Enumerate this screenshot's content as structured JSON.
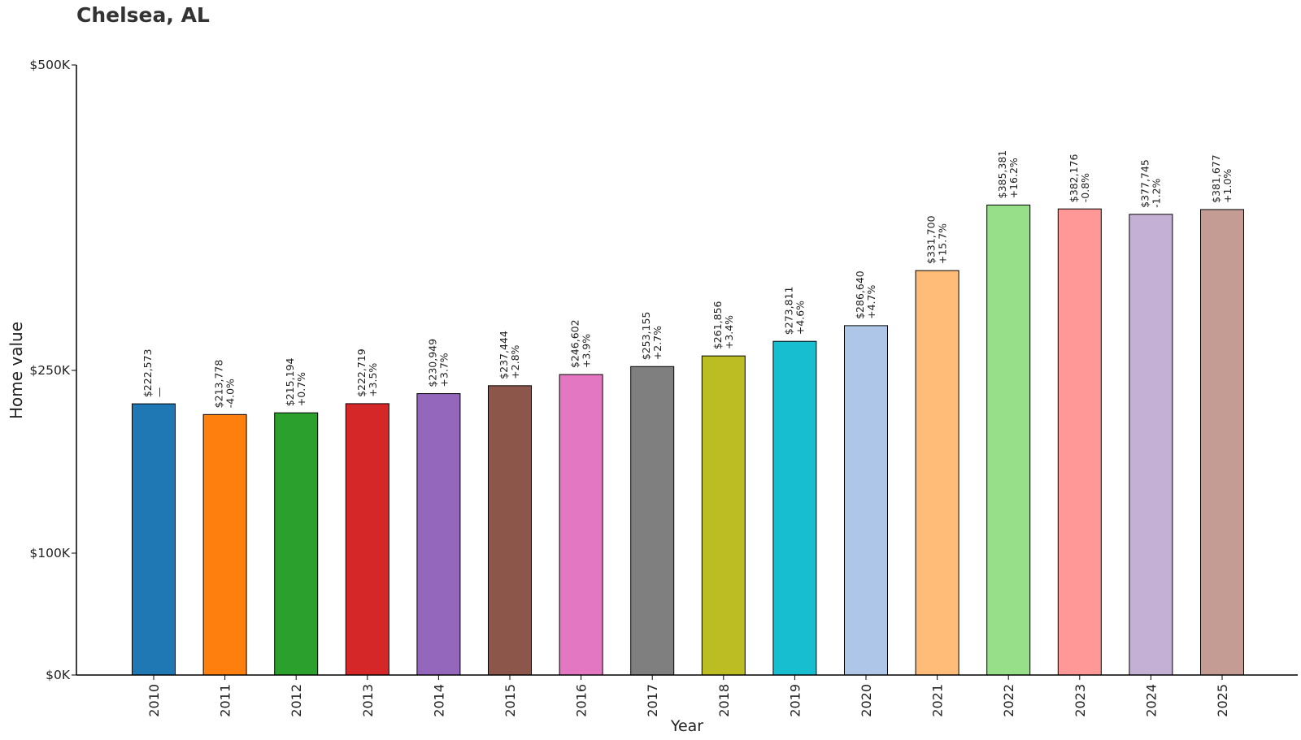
{
  "chart_data": {
    "type": "bar",
    "title": "Chelsea, AL",
    "xlabel": "Year",
    "ylabel": "Home value",
    "categories": [
      "2010",
      "2011",
      "2012",
      "2013",
      "2014",
      "2015",
      "2016",
      "2017",
      "2018",
      "2019",
      "2020",
      "2021",
      "2022",
      "2023",
      "2024",
      "2025"
    ],
    "values": [
      222573,
      213778,
      215194,
      222719,
      230949,
      237444,
      246602,
      253155,
      261856,
      273811,
      286640,
      331700,
      385381,
      382176,
      377745,
      381677
    ],
    "value_labels": [
      "$222,573",
      "$213,778",
      "$215,194",
      "$222,719",
      "$230,949",
      "$237,444",
      "$246,602",
      "$253,155",
      "$261,856",
      "$273,811",
      "$286,640",
      "$331,700",
      "$385,381",
      "$382,176",
      "$377,745",
      "$381,677"
    ],
    "change_labels": [
      "—",
      "-4.0%",
      "+0.7%",
      "+3.5%",
      "+3.7%",
      "+2.8%",
      "+3.9%",
      "+2.7%",
      "+3.4%",
      "+4.6%",
      "+4.7%",
      "+15.7%",
      "+16.2%",
      "-0.8%",
      "-1.2%",
      "+1.0%"
    ],
    "colors": [
      "#1f77b4",
      "#ff7f0e",
      "#2ca02c",
      "#d62728",
      "#9467bd",
      "#8c564b",
      "#e377c2",
      "#7f7f7f",
      "#bcbd22",
      "#17becf",
      "#aec7e8",
      "#ffbb78",
      "#98df8a",
      "#ff9896",
      "#c5b0d5",
      "#c49c94"
    ],
    "yticks": [
      0,
      100000,
      250000,
      500000
    ],
    "ytick_labels": [
      "$0K",
      "$100K",
      "$250K",
      "$500K"
    ],
    "ylim": [
      0,
      500000
    ],
    "grid": false,
    "legend": "none"
  }
}
